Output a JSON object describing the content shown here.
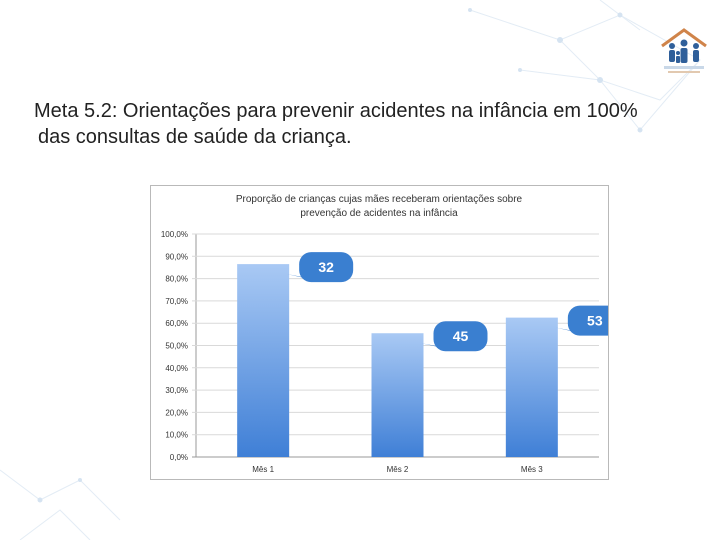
{
  "slide": {
    "heading_line1": "Meta 5.2: Orientações para prevenir acidentes na infância em 100%",
    "heading_line2": "das consultas de saúde da criança."
  },
  "colors": {
    "bar_top": "#a9c9f4",
    "bar_bottom": "#3f7fd6",
    "callout": "#3a7fd0",
    "decor": "#dfe9f3"
  },
  "chart_data": {
    "type": "bar",
    "title_line1": "Proporção de crianças cujas mães receberam orientações sobre",
    "title_line2": "prevenção de acidentes na infância",
    "categories": [
      "Mês 1",
      "Mês 2",
      "Mês 3"
    ],
    "values": [
      86.5,
      55.5,
      62.5
    ],
    "callouts": [
      "32",
      "45",
      "53"
    ],
    "ylim": [
      0,
      100
    ],
    "yticks": [
      "0,0%",
      "10,0%",
      "20,0%",
      "30,0%",
      "40,0%",
      "50,0%",
      "60,0%",
      "70,0%",
      "80,0%",
      "90,0%",
      "100,0%"
    ],
    "tick_values": [
      0,
      10,
      20,
      30,
      40,
      50,
      60,
      70,
      80,
      90,
      100
    ],
    "grid": true
  }
}
